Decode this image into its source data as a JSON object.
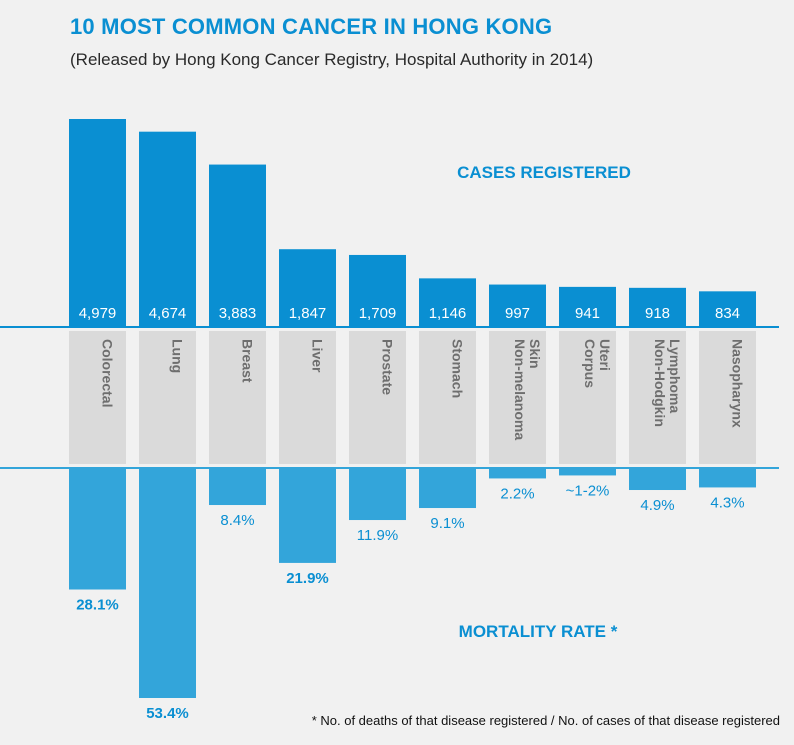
{
  "title": "10 MOST COMMON CANCER IN HONG KONG",
  "subtitle": "(Released by Hong Kong Cancer Registry, Hospital Authority in 2014)",
  "footnote": "* No. of deaths of that disease registered / No. of cases of that disease registered",
  "colors": {
    "cases_bar": "#0a8fd2",
    "mortality_bar": "#33a5da",
    "category_band": "#dadada",
    "label_text": "#6e6e6e",
    "accent_text": "#0a8fd2"
  },
  "chart_data": {
    "type": "bar",
    "categories": [
      "Colorectal",
      "Lung",
      "Breast",
      "Liver",
      "Prostate",
      "Stomach",
      "Non-melanoma Skin",
      "Corpus Uteri",
      "Non-Hodgkin Lymphoma",
      "Nasopharynx"
    ],
    "category_lines": [
      [
        "Colorectal"
      ],
      [
        "Lung"
      ],
      [
        "Breast"
      ],
      [
        "Liver"
      ],
      [
        "Prostate"
      ],
      [
        "Stomach"
      ],
      [
        "Non-melanoma",
        "Skin"
      ],
      [
        "Corpus",
        "Uteri"
      ],
      [
        "Non-Hodgkin",
        "Lymphoma"
      ],
      [
        "Nasopharynx"
      ]
    ],
    "series": [
      {
        "name": "CASES REGISTERED",
        "values": [
          4979,
          4674,
          3883,
          1847,
          1709,
          1146,
          997,
          941,
          918,
          834
        ],
        "labels": [
          "4,979",
          "4,674",
          "3,883",
          "1,847",
          "1,709",
          "1,146",
          "997",
          "941",
          "918",
          "834"
        ]
      },
      {
        "name": "MORTALITY RATE *",
        "values": [
          28.1,
          53.4,
          8.4,
          21.9,
          11.9,
          9.1,
          2.2,
          1.5,
          4.9,
          4.3
        ],
        "labels": [
          "28.1%",
          "53.4%",
          "8.4%",
          "21.9%",
          "11.9%",
          "9.1%",
          "2.2%",
          "~1-2%",
          "4.9%",
          "4.3%"
        ],
        "bold_labels": [
          true,
          true,
          false,
          true,
          false,
          false,
          false,
          false,
          false,
          false
        ]
      }
    ]
  }
}
